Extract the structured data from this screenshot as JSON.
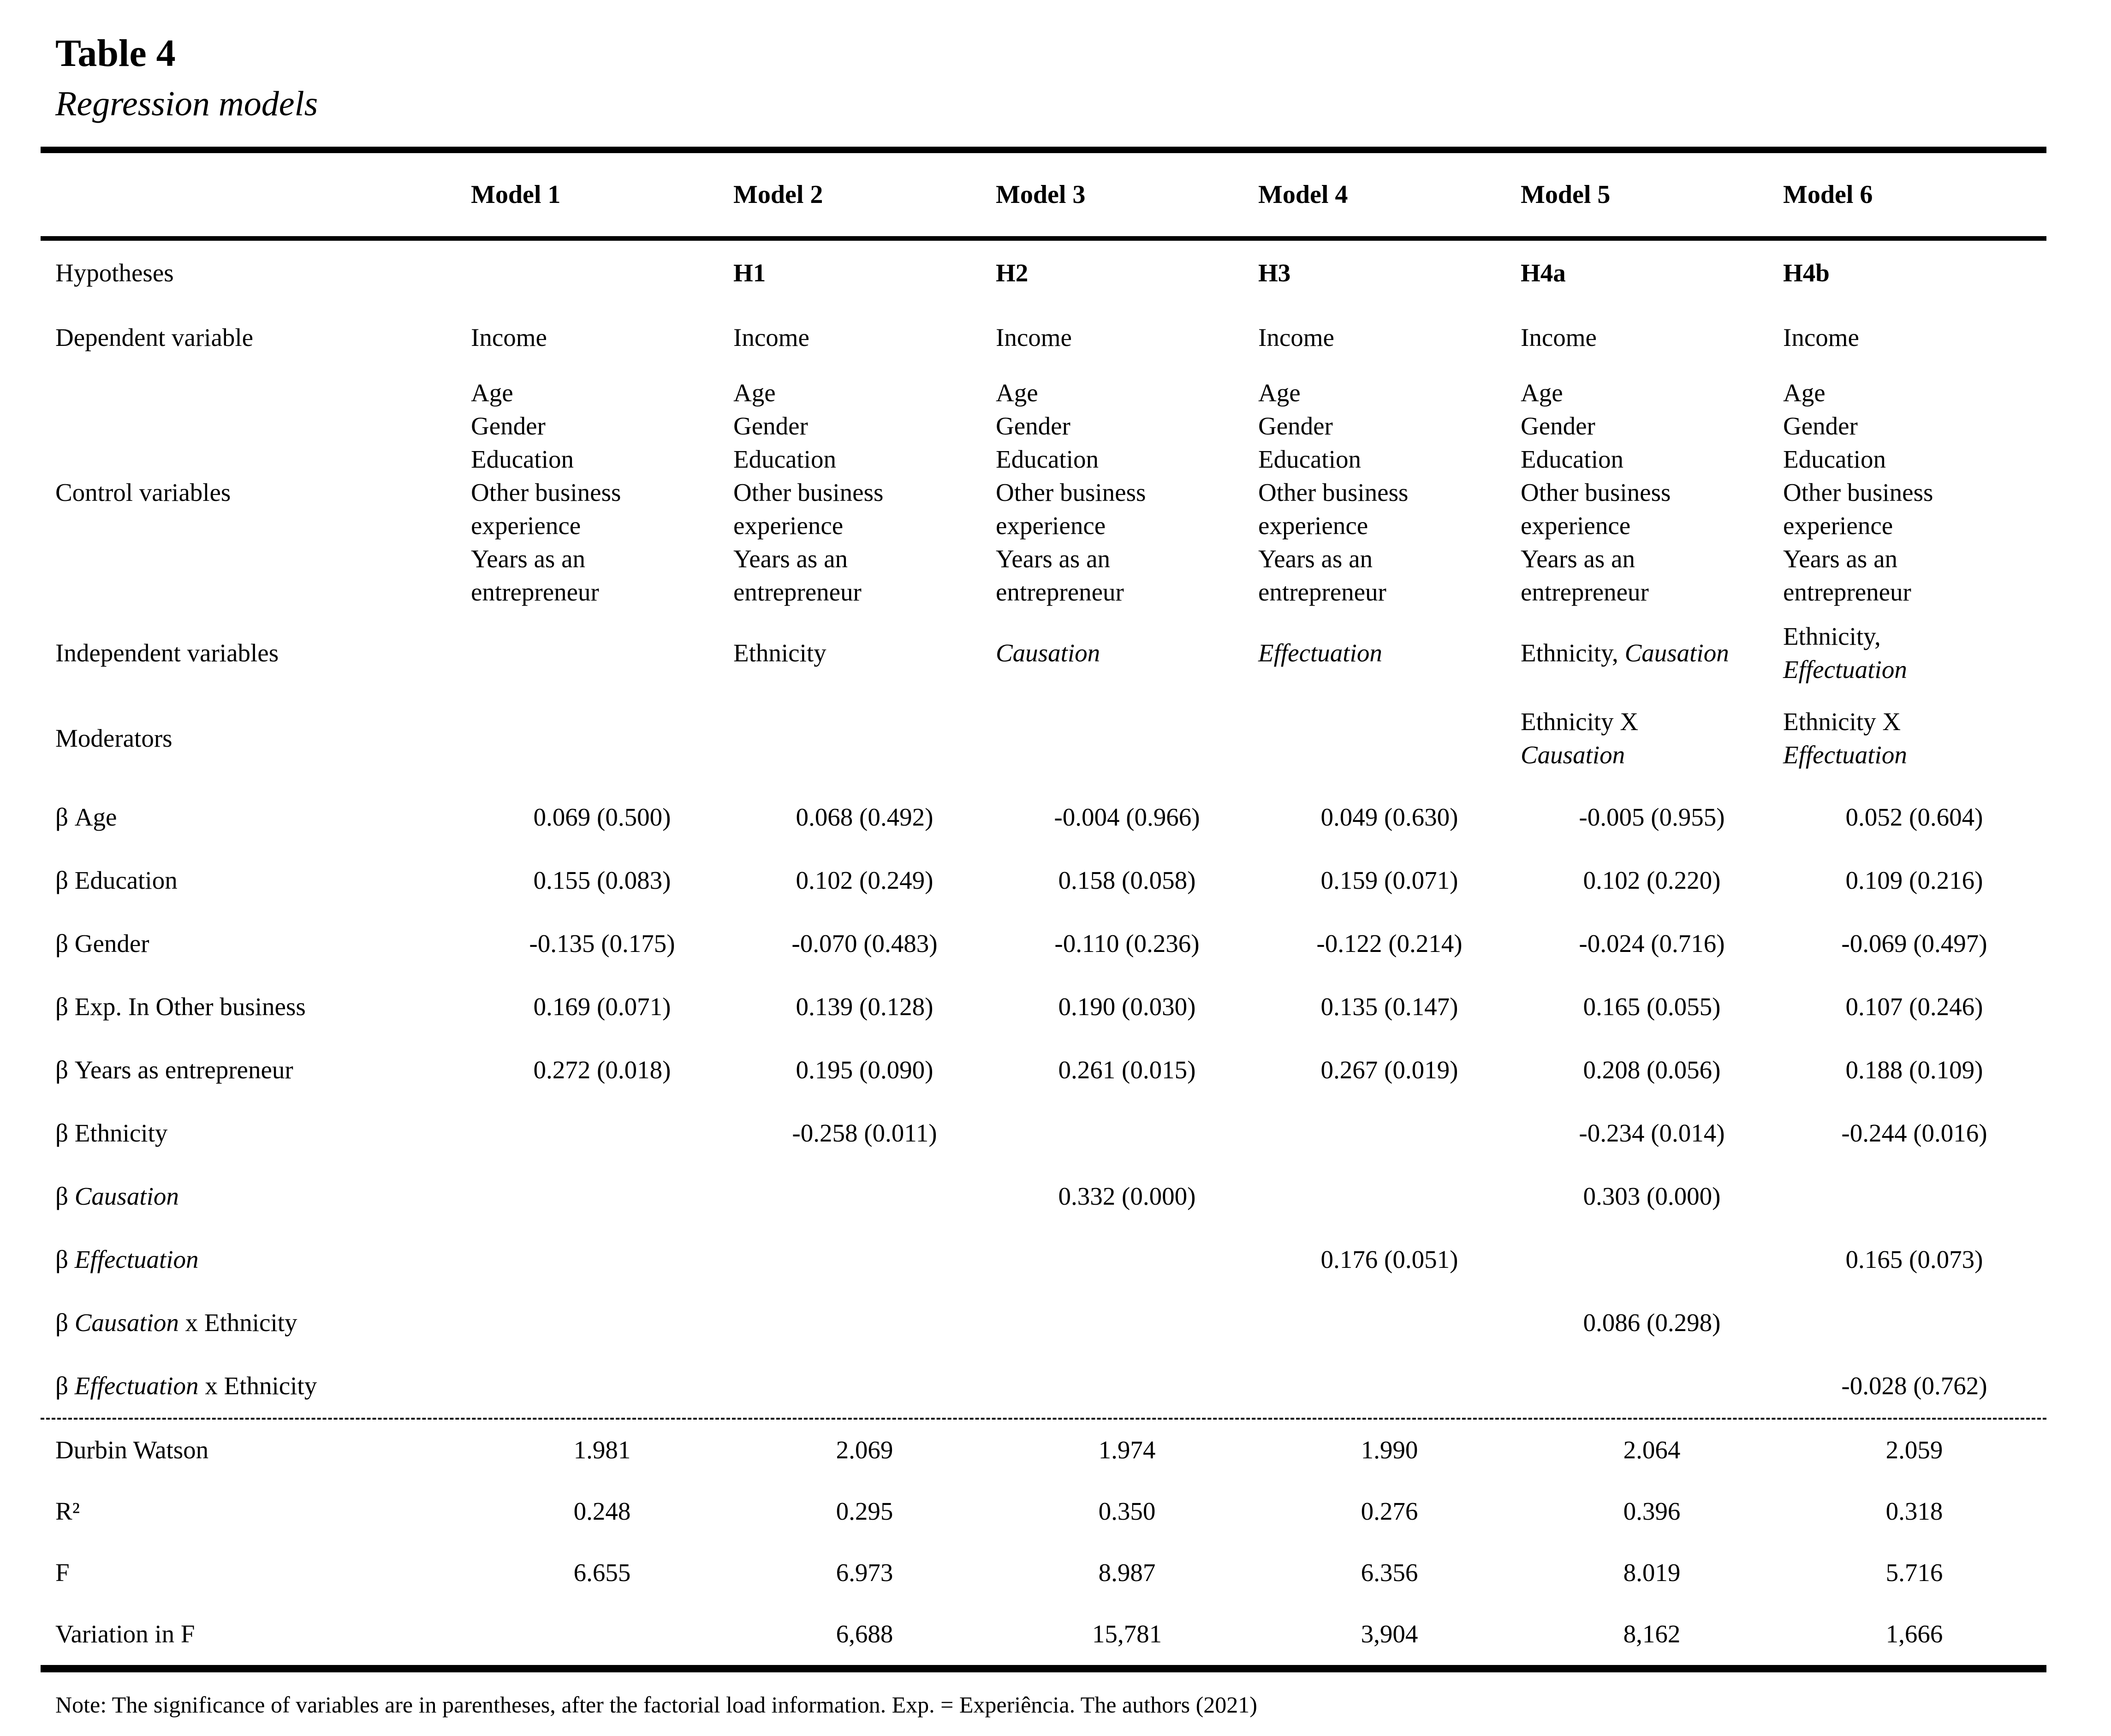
{
  "page": {
    "title": "Table 4",
    "subtitle": "Regression models",
    "note": "Note: The significance of variables are in parentheses, after the factorial load information. Exp. = Experiência. The authors (2021)"
  },
  "table": {
    "columns": [
      "",
      "Model 1",
      "Model 2",
      "Model 3",
      "Model 4",
      "Model 5",
      "Model 6"
    ],
    "rows": [
      {
        "id": "hypotheses",
        "label": "Hypotheses",
        "bold": true,
        "align": "left",
        "cells": [
          "",
          "H1",
          "H2",
          "H3",
          "H4a",
          "H4b"
        ]
      },
      {
        "id": "dependent-variable",
        "label": "Dependent variable",
        "align": "left",
        "cells": [
          "Income",
          "Income",
          "Income",
          "Income",
          "Income",
          "Income"
        ]
      },
      {
        "id": "control-variables",
        "label": "Control variables",
        "align": "left",
        "cells": [
          "Age\nGender\nEducation\nOther business\nexperience\nYears as an\nentrepreneur",
          "Age\nGender\nEducation\nOther business\nexperience\nYears as an\nentrepreneur",
          "Age\nGender\nEducation\nOther business\nexperience\nYears as an\nentrepreneur",
          "Age\nGender\nEducation\nOther business\nexperience\nYears as an\nentrepreneur",
          "Age\nGender\nEducation\nOther business\nexperience\nYears as an\nentrepreneur",
          "Age\nGender\nEducation\nOther business\nexperience\nYears as an\nentrepreneur"
        ]
      },
      {
        "id": "independent-variables",
        "label": "Independent variables",
        "align": "left",
        "cells": [
          "",
          "Ethnicity",
          "*Causation*",
          "*Effectuation*",
          "Ethnicity, *Causation*",
          "Ethnicity,\n*Effectuation*"
        ]
      },
      {
        "id": "moderators",
        "label": "Moderators",
        "align": "left",
        "cells": [
          "",
          "",
          "",
          "",
          "Ethnicity X\n*Causation*",
          "Ethnicity X\n*Effectuation*"
        ]
      },
      {
        "id": "beta-age",
        "label": "β Age",
        "align": "center",
        "cells": [
          "0.069 (0.500)",
          "0.068 (0.492)",
          "-0.004 (0.966)",
          "0.049 (0.630)",
          "-0.005 (0.955)",
          "0.052 (0.604)"
        ]
      },
      {
        "id": "beta-education",
        "label": "β Education",
        "align": "center",
        "cells": [
          "0.155 (0.083)",
          "0.102 (0.249)",
          "0.158 (0.058)",
          "0.159 (0.071)",
          "0.102 (0.220)",
          "0.109 (0.216)"
        ]
      },
      {
        "id": "beta-gender",
        "label": "β Gender",
        "align": "center",
        "cells": [
          "-0.135 (0.175)",
          "-0.070 (0.483)",
          "-0.110 (0.236)",
          "-0.122 (0.214)",
          "-0.024 (0.716)",
          "-0.069 (0.497)"
        ]
      },
      {
        "id": "beta-exp-in-other-business",
        "label": "β Exp. In Other business",
        "align": "center",
        "cells": [
          "0.169 (0.071)",
          "0.139 (0.128)",
          "0.190 (0.030)",
          "0.135 (0.147)",
          "0.165 (0.055)",
          "0.107 (0.246)"
        ]
      },
      {
        "id": "beta-years-as-entrepreneur",
        "label": "β Years as entrepreneur",
        "align": "center",
        "cells": [
          "0.272 (0.018)",
          "0.195 (0.090)",
          "0.261 (0.015)",
          "0.267 (0.019)",
          "0.208 (0.056)",
          "0.188 (0.109)"
        ]
      },
      {
        "id": "beta-ethnicity",
        "label": "β Ethnicity",
        "align": "center",
        "cells": [
          "",
          "-0.258 (0.011)",
          "",
          "",
          "-0.234 (0.014)",
          "-0.244 (0.016)"
        ]
      },
      {
        "id": "beta-causation",
        "label": "β *Causation*",
        "align": "center",
        "cells": [
          "",
          "",
          "0.332 (0.000)",
          "",
          "0.303 (0.000)",
          ""
        ]
      },
      {
        "id": "beta-effectuation",
        "label": "β *Effectuation*",
        "align": "center",
        "cells": [
          "",
          "",
          "",
          "0.176 (0.051)",
          "",
          "0.165 (0.073)"
        ]
      },
      {
        "id": "beta-causation-x-ethnicity",
        "label": "β *Causation* x Ethnicity",
        "align": "center",
        "cells": [
          "",
          "",
          "",
          "",
          "0.086 (0.298)",
          ""
        ]
      },
      {
        "id": "beta-effectuation-x-ethnicity",
        "label": "β *Effectuation* x Ethnicity",
        "align": "center",
        "cells": [
          "",
          "",
          "",
          "",
          "",
          "-0.028 (0.762)"
        ]
      }
    ],
    "stats": [
      {
        "id": "durbin-watson",
        "label": "Durbin Watson",
        "cells": [
          "1.981",
          "2.069",
          "1.974",
          "1.990",
          "2.064",
          "2.059"
        ]
      },
      {
        "id": "r-squared",
        "label": "R²",
        "cells": [
          "0.248",
          "0.295",
          "0.350",
          "0.276",
          "0.396",
          "0.318"
        ]
      },
      {
        "id": "f",
        "label": "F",
        "cells": [
          "6.655",
          "6.973",
          "8.987",
          "6.356",
          "8.019",
          "5.716"
        ]
      },
      {
        "id": "variation-in-f",
        "label": "Variation in F",
        "cells": [
          "",
          "6,688",
          "15,781",
          "3,904",
          "8,162",
          "1,666"
        ]
      }
    ]
  }
}
